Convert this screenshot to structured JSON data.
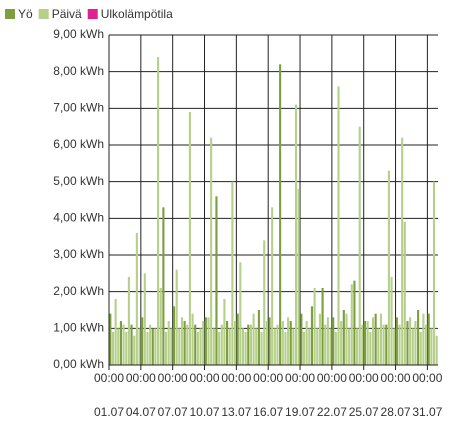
{
  "chart_data": {
    "type": "bar",
    "series": [
      {
        "name": "Yö",
        "color": "#7d9e3f",
        "x": [
          0.125,
          1.125,
          2.125,
          3.125,
          4.125,
          5.125,
          6.125,
          7.125,
          8.125,
          9.125,
          10.125,
          11.125,
          12.125,
          13.125,
          14.125,
          15.125,
          16.125,
          17.125,
          18.125,
          19.125,
          20.125,
          21.125,
          22.125,
          23.125,
          24.125,
          25.125,
          26.125,
          27.125,
          28.125,
          29.125,
          30.125
        ],
        "values": [
          1.4,
          1.2,
          1.1,
          1.3,
          1.0,
          4.3,
          1.6,
          1.2,
          1.1,
          1.3,
          4.6,
          1.2,
          1.4,
          1.1,
          1.5,
          1.3,
          8.2,
          1.2,
          1.4,
          1.6,
          2.1,
          1.3,
          1.5,
          2.3,
          1.2,
          1.4,
          1.1,
          1.3,
          1.2,
          1.5,
          1.4
        ]
      },
      {
        "name": "Päivä",
        "color": "#b6d08c",
        "x": [
          0.375,
          0.625,
          0.875,
          1.375,
          1.625,
          1.875,
          2.375,
          2.625,
          2.875,
          3.375,
          3.625,
          3.875,
          4.375,
          4.625,
          4.875,
          5.375,
          5.625,
          5.875,
          6.375,
          6.625,
          6.875,
          7.375,
          7.625,
          7.875,
          8.375,
          8.625,
          8.875,
          9.375,
          9.625,
          9.875,
          10.375,
          10.625,
          10.875,
          11.375,
          11.625,
          11.875,
          12.375,
          12.625,
          12.875,
          13.375,
          13.625,
          13.875,
          14.375,
          14.625,
          14.875,
          15.375,
          15.625,
          15.875,
          16.375,
          16.625,
          16.875,
          17.375,
          17.625,
          17.875,
          18.375,
          18.625,
          18.875,
          19.375,
          19.625,
          19.875,
          20.375,
          20.625,
          20.875,
          21.375,
          21.625,
          21.875,
          22.375,
          22.625,
          22.875,
          23.375,
          23.625,
          23.875,
          24.375,
          24.625,
          24.875,
          25.375,
          25.625,
          25.875,
          26.375,
          26.625,
          26.875,
          27.375,
          27.625,
          27.875,
          28.375,
          28.625,
          28.875,
          29.375,
          29.625,
          29.875,
          30.375,
          30.625,
          30.875
        ],
        "values": [
          0.9,
          1.8,
          1.0,
          1.1,
          0.9,
          2.4,
          0.8,
          3.6,
          1.0,
          2.5,
          0.9,
          1.1,
          1.0,
          8.4,
          2.1,
          0.9,
          1.2,
          1.0,
          2.6,
          1.0,
          1.3,
          1.1,
          6.9,
          1.4,
          0.9,
          1.0,
          1.2,
          1.3,
          6.2,
          1.0,
          0.9,
          1.1,
          1.8,
          1.0,
          5.0,
          1.2,
          2.8,
          1.0,
          0.9,
          1.1,
          1.4,
          1.0,
          0.9,
          3.4,
          1.2,
          4.3,
          1.0,
          1.1,
          1.2,
          0.9,
          1.3,
          1.0,
          7.1,
          4.8,
          0.9,
          1.2,
          1.0,
          2.1,
          1.0,
          1.4,
          1.1,
          1.3,
          1.0,
          0.9,
          7.6,
          1.2,
          1.4,
          1.0,
          2.2,
          1.0,
          6.5,
          1.1,
          1.2,
          0.9,
          1.3,
          1.0,
          1.4,
          1.1,
          5.3,
          2.4,
          1.0,
          1.1,
          6.2,
          3.9,
          1.3,
          1.0,
          1.2,
          0.9,
          1.4,
          1.1,
          1.0,
          5.0,
          0.8
        ]
      },
      {
        "name": "Ulkolämpötila",
        "color": "#e0208c",
        "x": [],
        "values": []
      }
    ],
    "xlim": [
      0,
      31
    ],
    "xticks": [
      {
        "value": 0,
        "label": "01.07",
        "time": "00:00"
      },
      {
        "value": 3,
        "label": "04.07",
        "time": "00:00"
      },
      {
        "value": 6,
        "label": "07.07",
        "time": "00:00"
      },
      {
        "value": 9,
        "label": "10.07",
        "time": "00:00"
      },
      {
        "value": 12,
        "label": "13.07",
        "time": "00:00"
      },
      {
        "value": 15,
        "label": "16.07",
        "time": "00:00"
      },
      {
        "value": 18,
        "label": "19.07",
        "time": "00:00"
      },
      {
        "value": 21,
        "label": "22.07",
        "time": "00:00"
      },
      {
        "value": 24,
        "label": "25.07",
        "time": "00:00"
      },
      {
        "value": 27,
        "label": "28.07",
        "time": "00:00"
      },
      {
        "value": 30,
        "label": "31.07",
        "time": "00:00"
      }
    ],
    "ylim": [
      0,
      9
    ],
    "yticks": [
      {
        "value": 0,
        "label": "0,00 kWh"
      },
      {
        "value": 1,
        "label": "1,00 kWh"
      },
      {
        "value": 2,
        "label": "2,00 kWh"
      },
      {
        "value": 3,
        "label": "3,00 kWh"
      },
      {
        "value": 4,
        "label": "4,00 kWh"
      },
      {
        "value": 5,
        "label": "5,00 kWh"
      },
      {
        "value": 6,
        "label": "6,00 kWh"
      },
      {
        "value": 7,
        "label": "7,00 kWh"
      },
      {
        "value": 8,
        "label": "8,00 kWh"
      },
      {
        "value": 9,
        "label": "9,00 kWh"
      }
    ],
    "grid": true
  }
}
